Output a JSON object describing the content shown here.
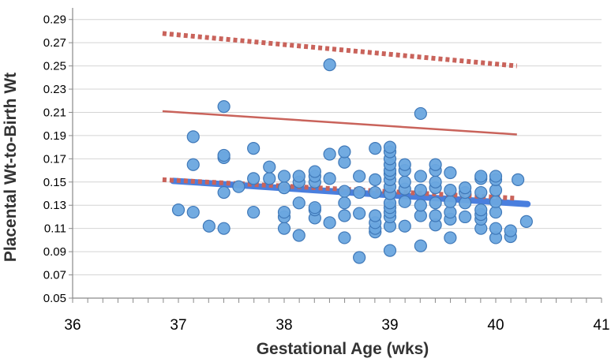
{
  "chart_data": {
    "type": "scatter",
    "title": "",
    "xlabel": "Gestational Age (wks)",
    "ylabel": "Placental Wt-to-Birth Wt",
    "xlim": [
      36,
      41
    ],
    "ylim": [
      0.05,
      0.3
    ],
    "x_ticks": [
      36,
      37,
      38,
      39,
      40,
      41
    ],
    "y_ticks": [
      0.05,
      0.07,
      0.09,
      0.11,
      0.13,
      0.15,
      0.17,
      0.19,
      0.21,
      0.23,
      0.25,
      0.27,
      0.29
    ],
    "x_tick_labels": [
      "36",
      "37",
      "38",
      "39",
      "40",
      "41"
    ],
    "y_tick_labels": [
      "0.05",
      "0.07",
      "0.09",
      "0.11",
      "0.13",
      "0.15",
      "0.17",
      "0.19",
      "0.21",
      "0.23",
      "0.25",
      "0.27",
      "0.29"
    ],
    "grid": "horizontal",
    "legend": "none",
    "points": [
      [
        37.0,
        0.126
      ],
      [
        37.14,
        0.124
      ],
      [
        37.14,
        0.165
      ],
      [
        37.14,
        0.189
      ],
      [
        37.29,
        0.112
      ],
      [
        37.43,
        0.11
      ],
      [
        37.43,
        0.141
      ],
      [
        37.43,
        0.171
      ],
      [
        37.43,
        0.173
      ],
      [
        37.43,
        0.215
      ],
      [
        37.57,
        0.146
      ],
      [
        37.71,
        0.124
      ],
      [
        37.71,
        0.153
      ],
      [
        37.71,
        0.179
      ],
      [
        37.86,
        0.153
      ],
      [
        37.86,
        0.163
      ],
      [
        38.0,
        0.11
      ],
      [
        38.0,
        0.12
      ],
      [
        38.0,
        0.124
      ],
      [
        38.0,
        0.145
      ],
      [
        38.0,
        0.155
      ],
      [
        38.14,
        0.104
      ],
      [
        38.14,
        0.132
      ],
      [
        38.14,
        0.15
      ],
      [
        38.14,
        0.155
      ],
      [
        38.29,
        0.119
      ],
      [
        38.29,
        0.126
      ],
      [
        38.29,
        0.128
      ],
      [
        38.29,
        0.15
      ],
      [
        38.29,
        0.155
      ],
      [
        38.29,
        0.159
      ],
      [
        38.43,
        0.115
      ],
      [
        38.43,
        0.153
      ],
      [
        38.43,
        0.174
      ],
      [
        38.43,
        0.251
      ],
      [
        38.57,
        0.102
      ],
      [
        38.57,
        0.121
      ],
      [
        38.57,
        0.132
      ],
      [
        38.57,
        0.142
      ],
      [
        38.57,
        0.167
      ],
      [
        38.57,
        0.176
      ],
      [
        38.71,
        0.085
      ],
      [
        38.71,
        0.123
      ],
      [
        38.71,
        0.141
      ],
      [
        38.71,
        0.155
      ],
      [
        38.86,
        0.107
      ],
      [
        38.86,
        0.11
      ],
      [
        38.86,
        0.115
      ],
      [
        38.86,
        0.121
      ],
      [
        38.86,
        0.141
      ],
      [
        38.86,
        0.152
      ],
      [
        38.86,
        0.179
      ],
      [
        39.0,
        0.091
      ],
      [
        39.0,
        0.112
      ],
      [
        39.0,
        0.12
      ],
      [
        39.0,
        0.124
      ],
      [
        39.0,
        0.128
      ],
      [
        39.0,
        0.132
      ],
      [
        39.0,
        0.14
      ],
      [
        39.0,
        0.146
      ],
      [
        39.0,
        0.152
      ],
      [
        39.0,
        0.157
      ],
      [
        39.0,
        0.16
      ],
      [
        39.0,
        0.165
      ],
      [
        39.0,
        0.17
      ],
      [
        39.0,
        0.176
      ],
      [
        39.0,
        0.18
      ],
      [
        39.14,
        0.112
      ],
      [
        39.14,
        0.133
      ],
      [
        39.14,
        0.144
      ],
      [
        39.14,
        0.15
      ],
      [
        39.14,
        0.16
      ],
      [
        39.14,
        0.165
      ],
      [
        39.29,
        0.095
      ],
      [
        39.29,
        0.121
      ],
      [
        39.29,
        0.13
      ],
      [
        39.29,
        0.143
      ],
      [
        39.29,
        0.155
      ],
      [
        39.29,
        0.209
      ],
      [
        39.43,
        0.113
      ],
      [
        39.43,
        0.121
      ],
      [
        39.43,
        0.132
      ],
      [
        39.43,
        0.145
      ],
      [
        39.43,
        0.15
      ],
      [
        39.43,
        0.16
      ],
      [
        39.43,
        0.165
      ],
      [
        39.57,
        0.102
      ],
      [
        39.57,
        0.118
      ],
      [
        39.57,
        0.124
      ],
      [
        39.57,
        0.133
      ],
      [
        39.57,
        0.143
      ],
      [
        39.57,
        0.158
      ],
      [
        39.71,
        0.12
      ],
      [
        39.71,
        0.132
      ],
      [
        39.71,
        0.141
      ],
      [
        39.71,
        0.145
      ],
      [
        39.86,
        0.11
      ],
      [
        39.86,
        0.118
      ],
      [
        39.86,
        0.122
      ],
      [
        39.86,
        0.126
      ],
      [
        39.86,
        0.141
      ],
      [
        39.86,
        0.153
      ],
      [
        39.86,
        0.155
      ],
      [
        40.0,
        0.102
      ],
      [
        40.0,
        0.11
      ],
      [
        40.0,
        0.124
      ],
      [
        40.0,
        0.133
      ],
      [
        40.0,
        0.143
      ],
      [
        40.0,
        0.152
      ],
      [
        40.0,
        0.155
      ],
      [
        40.14,
        0.103
      ],
      [
        40.14,
        0.108
      ],
      [
        40.21,
        0.152
      ],
      [
        40.29,
        0.116
      ]
    ],
    "fit_lines": [
      {
        "style": "solid-thick",
        "color": "#4a7fde",
        "x": [
          36.95,
          40.3
        ],
        "y": [
          0.151,
          0.131
        ]
      },
      {
        "style": "solid-thin",
        "color": "#c9635b",
        "x": [
          36.85,
          40.2
        ],
        "y": [
          0.211,
          0.191
        ]
      },
      {
        "style": "dotted-thick",
        "color": "#c9635b",
        "x": [
          36.85,
          40.2
        ],
        "y": [
          0.278,
          0.25
        ]
      },
      {
        "style": "dotted-thick",
        "color": "#c9635b",
        "x": [
          36.85,
          40.2
        ],
        "y": [
          0.152,
          0.136
        ]
      }
    ],
    "colors": {
      "point_fill": "#6aa6df",
      "point_stroke": "#3f78b8",
      "grid": "#d4d4d4",
      "axis": "#8a8a8a"
    }
  }
}
